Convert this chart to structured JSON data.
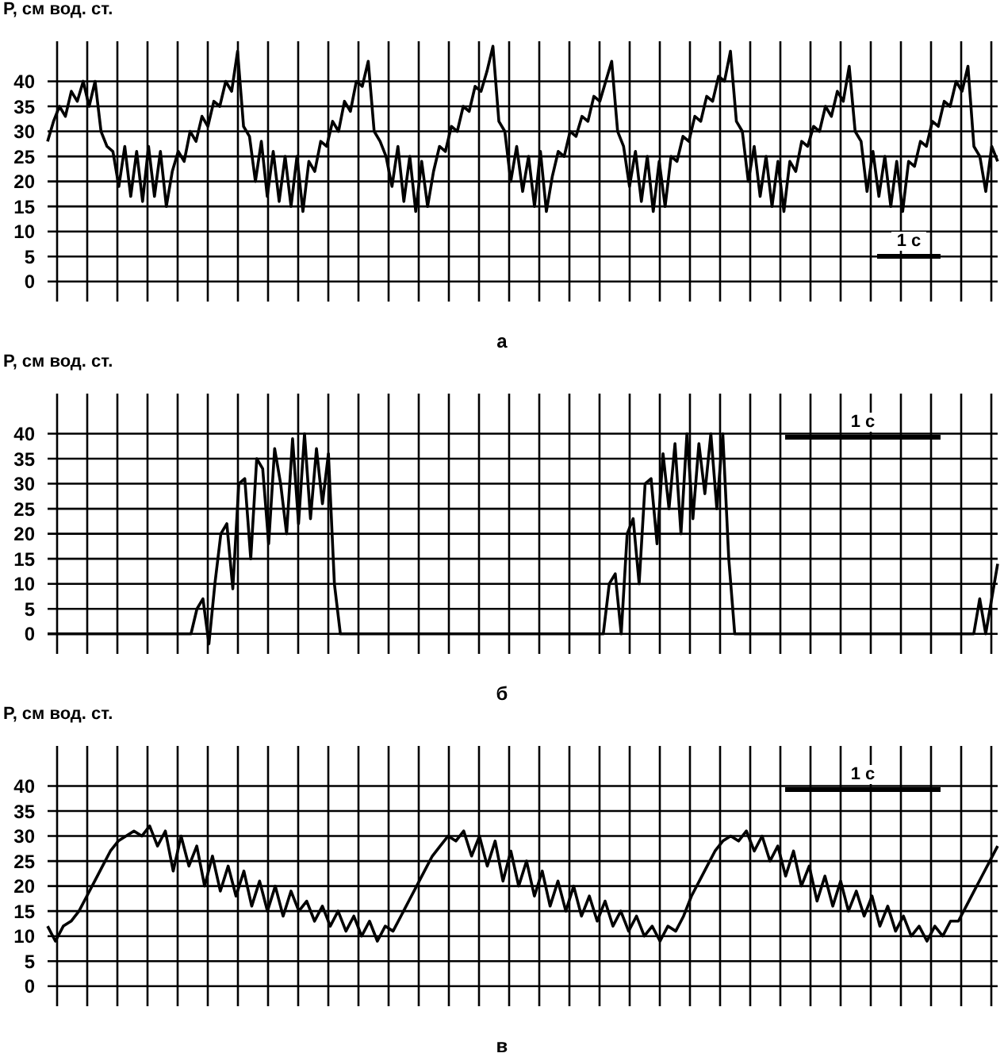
{
  "chart_data": [
    {
      "type": "line",
      "xlabel": "а",
      "ylabel": "Р, см вод. ст.",
      "annotations": [
        "1 с"
      ],
      "ylim": [
        -4,
        48
      ],
      "yticks": [
        0,
        5,
        10,
        15,
        20,
        25,
        30,
        35,
        40
      ],
      "grid": true,
      "tick_labels": "y",
      "marker": "none",
      "line_style": "solid",
      "categories": [
        null,
        null,
        null,
        null,
        null,
        null,
        null,
        null,
        null,
        null,
        null,
        null,
        null,
        null,
        null,
        null,
        null,
        null,
        null,
        null,
        null,
        null,
        null,
        null,
        null,
        null,
        null,
        null,
        null,
        null,
        null,
        null,
        null,
        null,
        null,
        null,
        null,
        null,
        null,
        null,
        null,
        null,
        null,
        null,
        null,
        null,
        null,
        null,
        null,
        null,
        null,
        null,
        null,
        null,
        null,
        null,
        null,
        null,
        null,
        null,
        null,
        null,
        null,
        null,
        null,
        null,
        null,
        null,
        null,
        null,
        null,
        null,
        null,
        null,
        null,
        null,
        null,
        null,
        null,
        null,
        null,
        null,
        null,
        null,
        null,
        null,
        null,
        null,
        null,
        null,
        null,
        null,
        null,
        null,
        null,
        null,
        null,
        null,
        null,
        null,
        null,
        null,
        null,
        null,
        null,
        null,
        null,
        null,
        null,
        null,
        null,
        null,
        null,
        null,
        null,
        null,
        null,
        null,
        null,
        null,
        null,
        null,
        null,
        null,
        null,
        null,
        null,
        null,
        null,
        null,
        null,
        null,
        null,
        null,
        null,
        null,
        null,
        null,
        null,
        null,
        null,
        null,
        null,
        null,
        null,
        null,
        null,
        null,
        null,
        null,
        null,
        null,
        null,
        null,
        null,
        null,
        null,
        null,
        null,
        null,
        null
      ],
      "series": [
        {
          "color": "#000000",
          "values": [
            28,
            32,
            35,
            33,
            38,
            36,
            40,
            35,
            40,
            30,
            27,
            26,
            19,
            27,
            17,
            26,
            16,
            27,
            17,
            26,
            15,
            22,
            26,
            24,
            30,
            28,
            33,
            31,
            36,
            35,
            40,
            38,
            46,
            31,
            29,
            20,
            28,
            17,
            26,
            16,
            25,
            15,
            25,
            14,
            24,
            22,
            28,
            27,
            32,
            30,
            36,
            34,
            40,
            39,
            44,
            30,
            28,
            25,
            19,
            27,
            16,
            25,
            14,
            24,
            15,
            22,
            27,
            26,
            31,
            30,
            35,
            34,
            39,
            38,
            42,
            47,
            32,
            30,
            20,
            27,
            18,
            25,
            15,
            26,
            14,
            21,
            26,
            25,
            30,
            29,
            33,
            32,
            37,
            36,
            40,
            44,
            30,
            27,
            19,
            26,
            16,
            25,
            14,
            24,
            15,
            25,
            24,
            29,
            28,
            33,
            32,
            37,
            36,
            41,
            40,
            46,
            32,
            30,
            20,
            27,
            17,
            25,
            15,
            24,
            14,
            24,
            22,
            28,
            27,
            31,
            30,
            35,
            33,
            38,
            36,
            43,
            30,
            28,
            18,
            26,
            17,
            25,
            15,
            24,
            14,
            24,
            23,
            28,
            27,
            32,
            31,
            36,
            35,
            40,
            38,
            43,
            27,
            25,
            18,
            27,
            24
          ]
        }
      ]
    },
    {
      "type": "line",
      "xlabel": "б",
      "ylabel": "Р, см вод. ст.",
      "annotations": [
        "1 с"
      ],
      "ylim": [
        -4,
        48
      ],
      "yticks": [
        0,
        5,
        10,
        15,
        20,
        25,
        30,
        35,
        40
      ],
      "grid": true,
      "tick_labels": "y",
      "marker": "none",
      "line_style": "solid",
      "categories": [
        null,
        null,
        null,
        null,
        null,
        null,
        null,
        null,
        null,
        null,
        null,
        null,
        null,
        null,
        null,
        null,
        null,
        null,
        null,
        null,
        null,
        null,
        null,
        null,
        null,
        null,
        null,
        null,
        null,
        null,
        null,
        null,
        null,
        null,
        null,
        null,
        null,
        null,
        null,
        null,
        null,
        null,
        null,
        null,
        null,
        null,
        null,
        null,
        null,
        null,
        null,
        null,
        null,
        null,
        null,
        null,
        null,
        null,
        null,
        null,
        null,
        null,
        null,
        null,
        null,
        null,
        null,
        null,
        null,
        null,
        null,
        null,
        null,
        null,
        null,
        null,
        null,
        null,
        null,
        null,
        null,
        null,
        null,
        null,
        null,
        null,
        null,
        null,
        null,
        null,
        null,
        null,
        null,
        null,
        null,
        null,
        null,
        null,
        null,
        null,
        null,
        null,
        null,
        null,
        null,
        null,
        null,
        null,
        null,
        null,
        null,
        null,
        null,
        null,
        null,
        null,
        null,
        null,
        null,
        null,
        null,
        null,
        null,
        null,
        null,
        null,
        null,
        null,
        null,
        null,
        null,
        null,
        null,
        null,
        null,
        null,
        null,
        null,
        null,
        null,
        null,
        null,
        null,
        null,
        null,
        null,
        null,
        null,
        null,
        null,
        null,
        null,
        null,
        null,
        null,
        null,
        null,
        null,
        null,
        null
      ],
      "series": [
        {
          "color": "#000000",
          "values": [
            0,
            0,
            0,
            0,
            0,
            0,
            0,
            0,
            0,
            0,
            0,
            0,
            0,
            0,
            0,
            0,
            0,
            0,
            0,
            0,
            0,
            0,
            0,
            0,
            0,
            5,
            7,
            -2,
            10,
            20,
            22,
            9,
            30,
            31,
            15,
            35,
            33,
            18,
            37,
            30,
            20,
            39,
            22,
            40,
            23,
            37,
            26,
            36,
            10,
            0,
            0,
            0,
            0,
            0,
            0,
            0,
            0,
            0,
            0,
            0,
            0,
            0,
            0,
            0,
            0,
            0,
            0,
            0,
            0,
            0,
            0,
            0,
            0,
            0,
            0,
            0,
            0,
            0,
            0,
            0,
            0,
            0,
            0,
            0,
            0,
            0,
            0,
            0,
            0,
            0,
            0,
            0,
            0,
            0,
            10,
            12,
            0,
            20,
            23,
            10,
            30,
            31,
            18,
            36,
            25,
            38,
            20,
            40,
            23,
            38,
            28,
            40,
            25,
            40,
            15,
            0,
            0,
            0,
            0,
            0,
            0,
            0,
            0,
            0,
            0,
            0,
            0,
            0,
            0,
            0,
            0,
            0,
            0,
            0,
            0,
            0,
            0,
            0,
            0,
            0,
            0,
            0,
            0,
            0,
            0,
            0,
            0,
            0,
            0,
            0,
            0,
            0,
            0,
            0,
            0,
            0,
            7,
            0,
            7,
            14
          ]
        }
      ]
    },
    {
      "type": "line",
      "xlabel": "в",
      "ylabel": "Р, см вод. ст.",
      "annotations": [
        "1 с"
      ],
      "ylim": [
        -4,
        48
      ],
      "yticks": [
        0,
        5,
        10,
        15,
        20,
        25,
        30,
        35,
        40
      ],
      "grid": true,
      "tick_labels": "y",
      "marker": "none",
      "line_style": "solid",
      "categories": [
        null,
        null,
        null,
        null,
        null,
        null,
        null,
        null,
        null,
        null,
        null,
        null,
        null,
        null,
        null,
        null,
        null,
        null,
        null,
        null,
        null,
        null,
        null,
        null,
        null,
        null,
        null,
        null,
        null,
        null,
        null,
        null,
        null,
        null,
        null,
        null,
        null,
        null,
        null,
        null,
        null,
        null,
        null,
        null,
        null,
        null,
        null,
        null,
        null,
        null,
        null,
        null,
        null,
        null,
        null,
        null,
        null,
        null,
        null,
        null,
        null,
        null,
        null,
        null,
        null,
        null,
        null,
        null,
        null,
        null,
        null,
        null,
        null,
        null,
        null,
        null,
        null,
        null,
        null,
        null,
        null,
        null,
        null,
        null,
        null,
        null,
        null,
        null,
        null,
        null,
        null,
        null,
        null,
        null,
        null,
        null,
        null,
        null,
        null,
        null,
        null,
        null,
        null,
        null,
        null,
        null,
        null,
        null,
        null,
        null,
        null,
        null,
        null,
        null,
        null,
        null,
        null,
        null,
        null,
        null,
        null,
        null
      ],
      "series": [
        {
          "color": "#000000",
          "values": [
            12,
            9,
            12,
            13,
            15,
            18,
            21,
            24,
            27,
            29,
            30,
            31,
            30,
            32,
            28,
            31,
            23,
            30,
            24,
            28,
            20,
            26,
            19,
            24,
            18,
            23,
            16,
            21,
            15,
            20,
            14,
            19,
            15,
            17,
            13,
            16,
            12,
            15,
            11,
            14,
            10,
            13,
            9,
            12,
            11,
            14,
            17,
            20,
            23,
            26,
            28,
            30,
            29,
            31,
            26,
            30,
            24,
            29,
            21,
            27,
            20,
            25,
            18,
            23,
            16,
            21,
            15,
            20,
            14,
            18,
            13,
            17,
            12,
            15,
            11,
            14,
            10,
            12,
            9,
            12,
            11,
            14,
            18,
            21,
            24,
            27,
            29,
            30,
            29,
            31,
            27,
            30,
            25,
            28,
            22,
            27,
            20,
            24,
            17,
            22,
            16,
            21,
            15,
            19,
            14,
            18,
            12,
            16,
            11,
            14,
            10,
            12,
            9,
            12,
            10,
            13,
            13,
            16,
            19,
            22,
            25,
            28
          ]
        }
      ]
    }
  ]
}
